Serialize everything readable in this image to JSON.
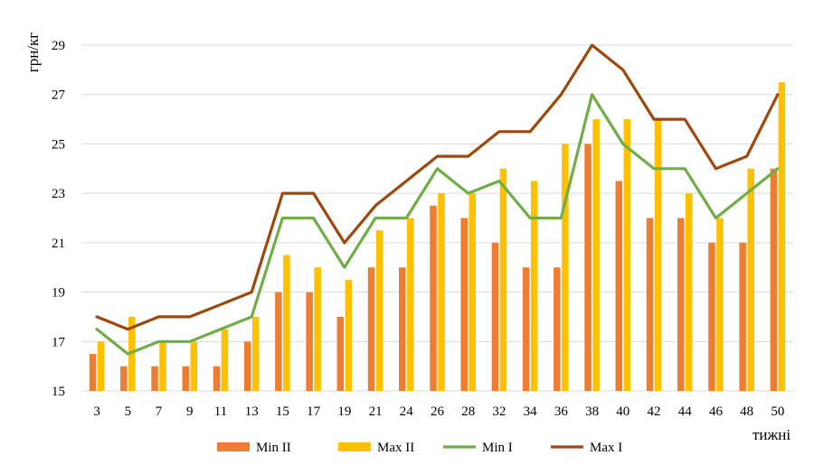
{
  "chart_data": {
    "type": "bar",
    "categories": [
      "3",
      "5",
      "7",
      "9",
      "11",
      "13",
      "15",
      "17",
      "19",
      "21",
      "24",
      "26",
      "28",
      "32",
      "34",
      "36",
      "38",
      "40",
      "42",
      "44",
      "46",
      "48",
      "50"
    ],
    "series": [
      {
        "name": "Min II",
        "kind": "bar",
        "color": "#ed7d31",
        "values": [
          16.5,
          16,
          16,
          16,
          16,
          17,
          19,
          19,
          18,
          20,
          20,
          22.5,
          22,
          21,
          20,
          20,
          25,
          23.5,
          22,
          22,
          21,
          21,
          24
        ]
      },
      {
        "name": "Max II",
        "kind": "bar",
        "color": "#ffc000",
        "values": [
          17,
          18,
          17,
          17,
          17.5,
          18,
          20.5,
          20,
          19.5,
          21.5,
          22,
          23,
          23,
          24,
          23.5,
          25,
          26,
          26,
          26,
          23,
          22,
          24,
          27.5
        ]
      },
      {
        "name": "Min I",
        "kind": "line",
        "color": "#70ad47",
        "values": [
          17.5,
          16.5,
          17,
          17,
          17.5,
          18,
          22,
          22,
          20,
          22,
          22,
          24,
          23,
          23.5,
          22,
          22,
          27,
          25,
          24,
          24,
          22,
          23,
          24
        ]
      },
      {
        "name": "Max I",
        "kind": "line",
        "color": "#9e480e",
        "values": [
          18,
          17.5,
          18,
          18,
          18.5,
          19,
          23,
          23,
          21,
          22.5,
          23.5,
          24.5,
          24.5,
          25.5,
          25.5,
          27,
          29,
          28,
          26,
          26,
          24,
          24.5,
          27
        ]
      }
    ],
    "ylabel": "грн/кг",
    "xlabel": "тижні",
    "ylim": [
      15,
      29
    ],
    "yticks": [
      15,
      17,
      19,
      21,
      23,
      25,
      27,
      29
    ],
    "grid": true,
    "legend_position": "bottom"
  }
}
